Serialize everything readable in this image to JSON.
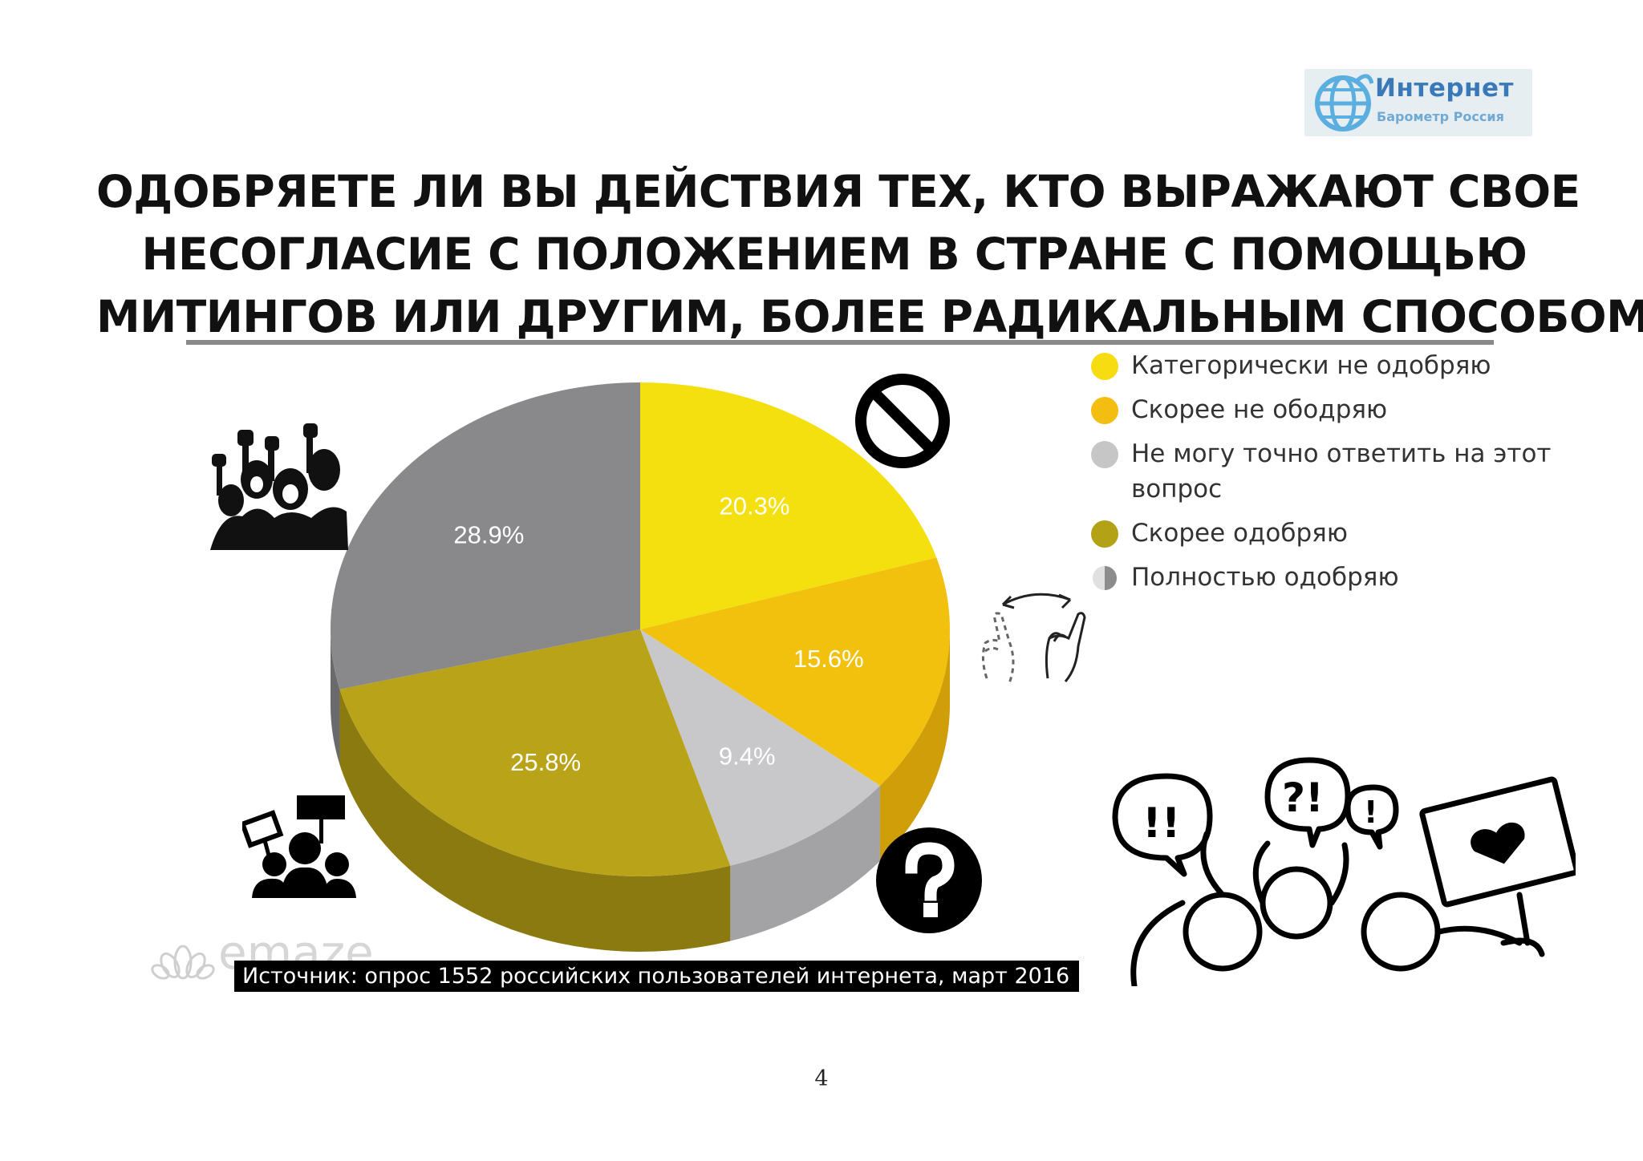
{
  "logo": {
    "title": "Интернет",
    "subtitle": "Барометр Россия"
  },
  "page_title": {
    "lines": [
      "ОДОБРЯЕТЕ ЛИ ВЫ ДЕЙСТВИЯ ТЕХ, КТО ВЫРАЖАЮТ СВОЕ",
      "НЕСОГЛАСИЕ С ПОЛОЖЕНИЕМ В СТРАНЕ С ПОМОЩЬЮ",
      "МИТИНГОВ ИЛИ ДРУГИМ, БОЛЕЕ РАДИКАЛЬНЫМ СПОСОБОМ ?"
    ]
  },
  "colors": {
    "legend": [
      "#f7dc11",
      "#f3bd12",
      "#c6c6c6",
      "#b3a116",
      "#8c8c8c"
    ],
    "pie_slices": [
      "#f5e00f",
      "#f2c10e",
      "#c8c8ca",
      "#b9a419",
      "#89888a"
    ],
    "pie_sides": [
      "#cfb80a",
      "#cf9e08",
      "#a3a3a5",
      "#8a7a10",
      "#6a6a6c"
    ]
  },
  "chart_data": {
    "type": "pie",
    "title": "ОДОБРЯЕТЕ ЛИ ВЫ ДЕЙСТВИЯ ТЕХ, КТО ВЫРАЖАЮТ СВОЕ НЕСОГЛАСИЕ С ПОЛОЖЕНИЕМ В СТРАНЕ С ПОМОЩЬЮ МИТИНГОВ ИЛИ ДРУГИМ, БОЛЕЕ РАДИКАЛЬНЫМ СПОСОБОМ ?",
    "legend_position": "right",
    "labels": [
      "Категорически не одобряю",
      "Скорее не ободряю",
      "Не могу точно ответить на этот вопрос",
      "Скорее одобряю",
      "Полностью одобряю"
    ],
    "legend_lines": [
      [
        "Категорически не одобряю"
      ],
      [
        "Скорее не ободряю"
      ],
      [
        "Не могу точно ответить на этот",
        "вопрос"
      ],
      [
        "Скорее одобряю"
      ],
      [
        "Полностью одобряю"
      ]
    ],
    "values": [
      20.3,
      15.6,
      9.4,
      25.8,
      28.9
    ],
    "data_labels": [
      "20.3%",
      "15.6%",
      "9.4%",
      "25.8%",
      "28.9%"
    ]
  },
  "source": "Источник: опрос 1552 российских пользователей интернета, март 2016",
  "watermark": "emaze",
  "page_number": "4",
  "icons": [
    "no-entry-icon",
    "question-mark-icon",
    "fist-protest-icon",
    "crowd-with-signs-icon",
    "hand-wave-icon",
    "speech-bubbles-icon"
  ]
}
